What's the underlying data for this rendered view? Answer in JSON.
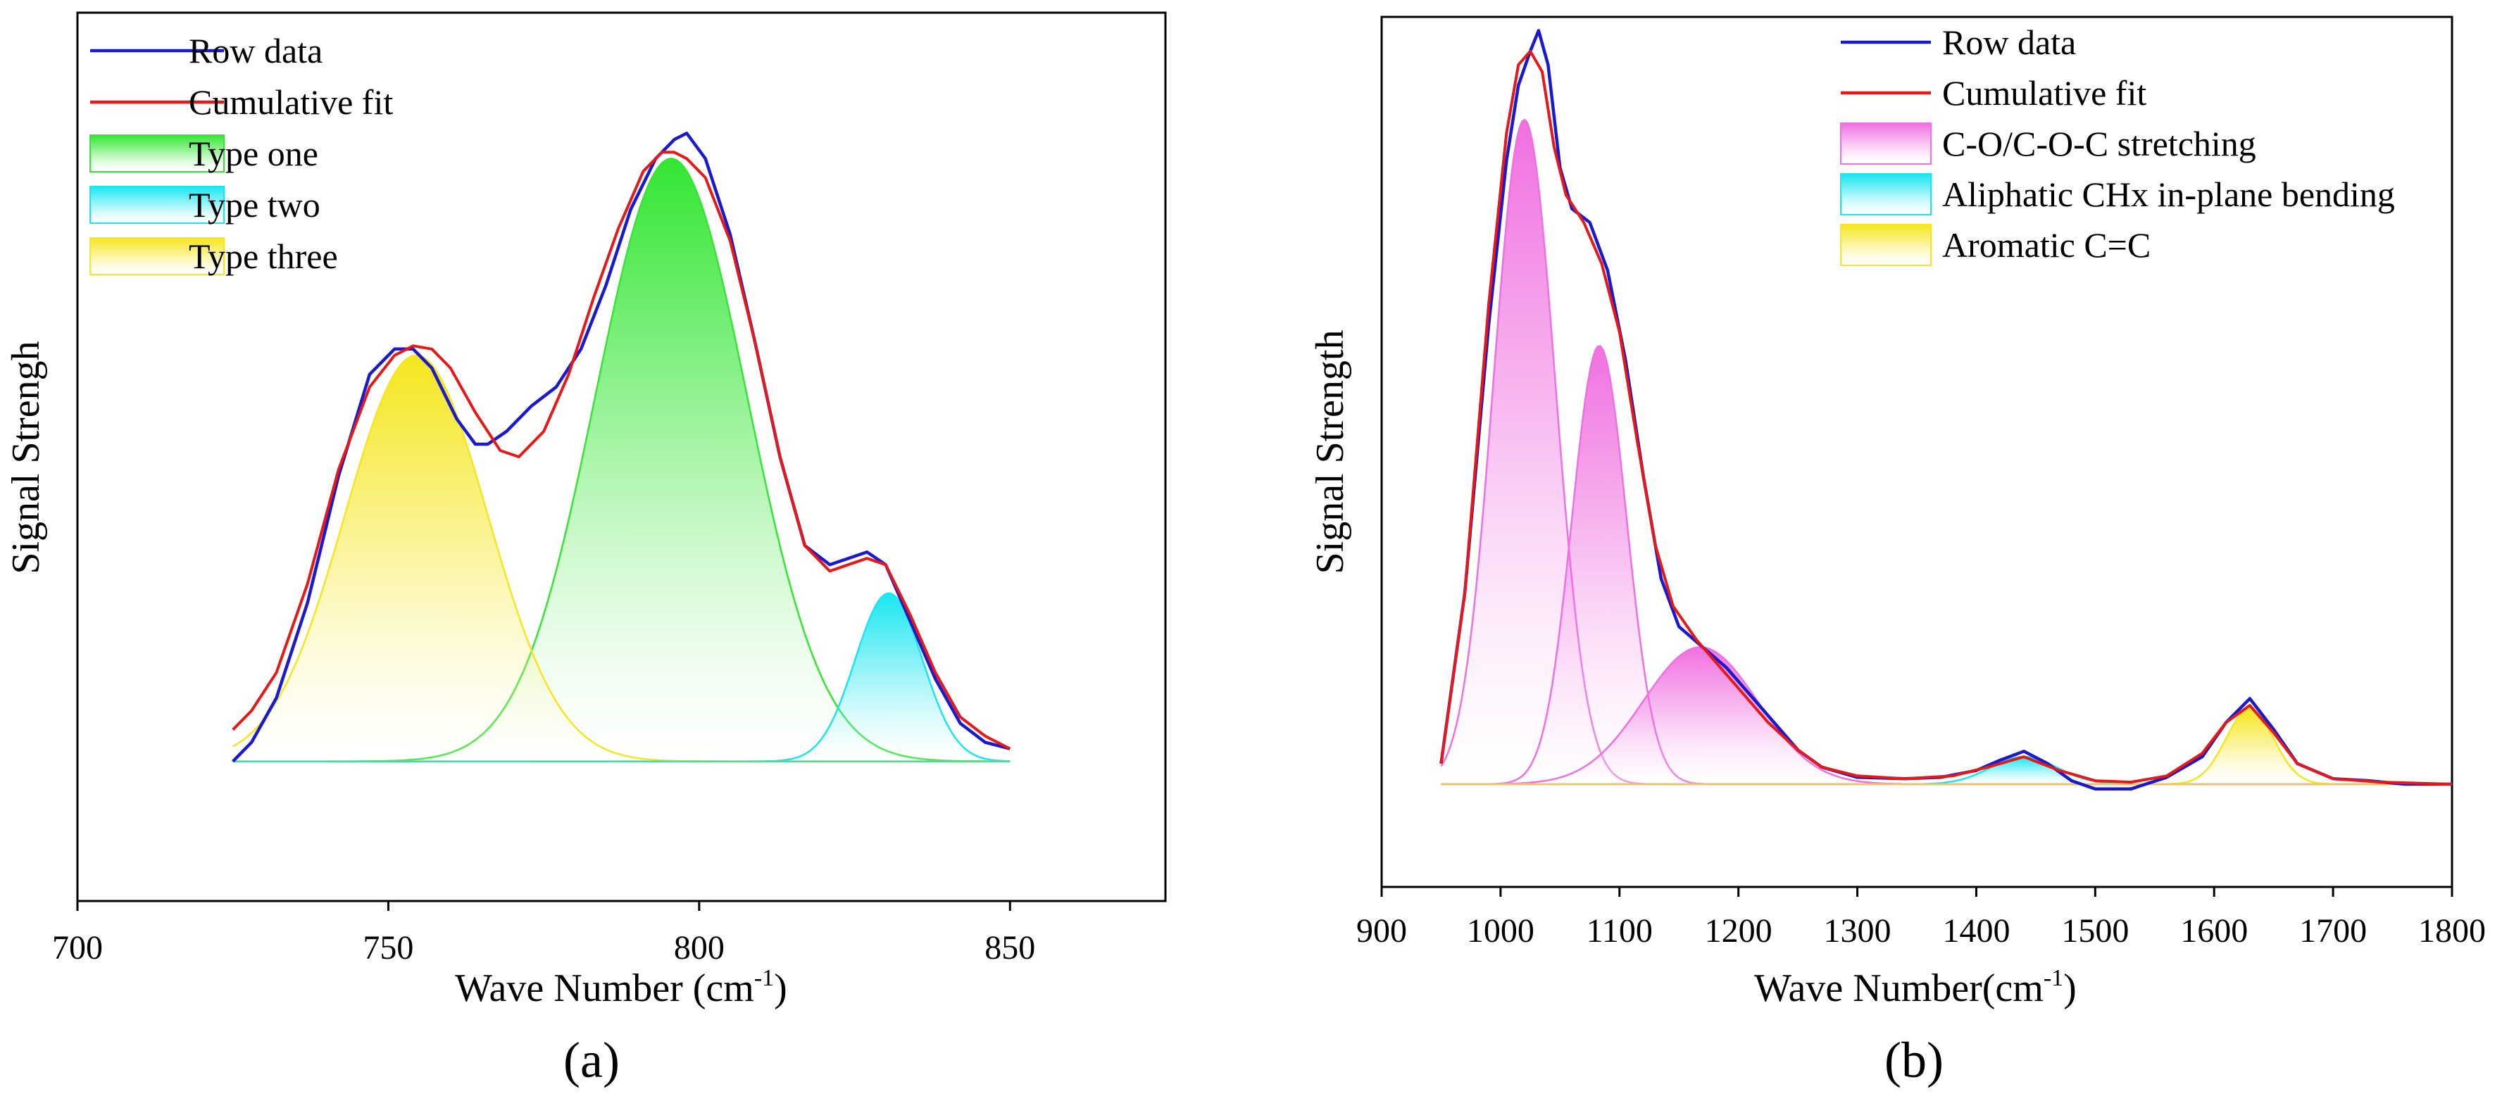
{
  "chart_data": [
    {
      "id": "a",
      "type": "line",
      "panel_label": "(a)",
      "xlabel": "Wave Number (cm",
      "xlabel_sup": "-1",
      "xlabel_end": ")",
      "ylabel": "Signal Strengh",
      "xlim": [
        700,
        875
      ],
      "ylim": [
        -0.22,
        1.18
      ],
      "xticks": [
        700,
        750,
        800,
        850
      ],
      "x_range": [
        725,
        850
      ],
      "raw_points": [
        [
          725,
          0.0
        ],
        [
          728,
          0.03
        ],
        [
          732,
          0.1
        ],
        [
          737,
          0.25
        ],
        [
          742,
          0.45
        ],
        [
          747,
          0.61
        ],
        [
          751,
          0.65
        ],
        [
          754,
          0.65
        ],
        [
          757,
          0.62
        ],
        [
          761,
          0.54
        ],
        [
          764,
          0.5
        ],
        [
          766,
          0.5
        ],
        [
          769,
          0.52
        ],
        [
          773,
          0.56
        ],
        [
          777,
          0.59
        ],
        [
          781,
          0.65
        ],
        [
          785,
          0.75
        ],
        [
          789,
          0.87
        ],
        [
          793,
          0.95
        ],
        [
          796,
          0.98
        ],
        [
          798,
          0.99
        ],
        [
          801,
          0.95
        ],
        [
          805,
          0.83
        ],
        [
          809,
          0.66
        ],
        [
          813,
          0.48
        ],
        [
          817,
          0.34
        ],
        [
          821,
          0.31
        ],
        [
          824,
          0.32
        ],
        [
          827,
          0.33
        ],
        [
          830,
          0.31
        ],
        [
          834,
          0.22
        ],
        [
          838,
          0.13
        ],
        [
          842,
          0.06
        ],
        [
          846,
          0.03
        ],
        [
          850,
          0.02
        ]
      ],
      "fit_points": [
        [
          725,
          0.05
        ],
        [
          728,
          0.08
        ],
        [
          732,
          0.14
        ],
        [
          737,
          0.28
        ],
        [
          742,
          0.46
        ],
        [
          747,
          0.59
        ],
        [
          751,
          0.64
        ],
        [
          754,
          0.655
        ],
        [
          757,
          0.65
        ],
        [
          760,
          0.62
        ],
        [
          764,
          0.55
        ],
        [
          768,
          0.49
        ],
        [
          771,
          0.48
        ],
        [
          775,
          0.52
        ],
        [
          779,
          0.61
        ],
        [
          783,
          0.73
        ],
        [
          787,
          0.84
        ],
        [
          791,
          0.93
        ],
        [
          794,
          0.96
        ],
        [
          796,
          0.96
        ],
        [
          798,
          0.95
        ],
        [
          801,
          0.92
        ],
        [
          805,
          0.82
        ],
        [
          809,
          0.66
        ],
        [
          813,
          0.48
        ],
        [
          817,
          0.34
        ],
        [
          821,
          0.3
        ],
        [
          824,
          0.31
        ],
        [
          827,
          0.32
        ],
        [
          830,
          0.31
        ],
        [
          834,
          0.23
        ],
        [
          838,
          0.14
        ],
        [
          842,
          0.07
        ],
        [
          846,
          0.04
        ],
        [
          850,
          0.02
        ]
      ],
      "components": [
        {
          "name": "Type one",
          "center": 795.5,
          "sigma": 12.2,
          "amplitude": 0.95,
          "color": "#33e633"
        },
        {
          "name": "Type two",
          "center": 830.5,
          "sigma": 5.4,
          "amplitude": 0.265,
          "color": "#19e6f0"
        },
        {
          "name": "Type three",
          "center": 754.5,
          "sigma": 11.5,
          "amplitude": 0.64,
          "color": "#f5e61e"
        }
      ],
      "legend": [
        {
          "label": "Row data",
          "kind": "line",
          "color": "#1a1acc"
        },
        {
          "label": "Cumulative fit",
          "kind": "line",
          "color": "#e61919"
        },
        {
          "label": "Type one",
          "kind": "area",
          "color": "#33e633"
        },
        {
          "label": "Type two",
          "kind": "area",
          "color": "#19e6f0"
        },
        {
          "label": "Type three",
          "kind": "area",
          "color": "#f5e61e"
        }
      ],
      "raw_color": "#1a1acc",
      "fit_color": "#e61919"
    },
    {
      "id": "b",
      "type": "line",
      "panel_label": "(b)",
      "xlabel": "Wave Number(cm",
      "xlabel_sup": "-1",
      "xlabel_end": ")",
      "ylabel": "Signal Strength",
      "xlim": [
        900,
        1800
      ],
      "ylim": [
        -0.15,
        1.12
      ],
      "xticks": [
        900,
        1000,
        1100,
        1200,
        1300,
        1400,
        1500,
        1600,
        1700,
        1800
      ],
      "x_range": [
        950,
        1800
      ],
      "raw_points": [
        [
          950,
          0.03
        ],
        [
          970,
          0.28
        ],
        [
          990,
          0.67
        ],
        [
          1005,
          0.91
        ],
        [
          1015,
          1.02
        ],
        [
          1025,
          1.07
        ],
        [
          1032,
          1.1
        ],
        [
          1040,
          1.05
        ],
        [
          1050,
          0.9
        ],
        [
          1060,
          0.84
        ],
        [
          1075,
          0.82
        ],
        [
          1090,
          0.75
        ],
        [
          1105,
          0.62
        ],
        [
          1120,
          0.45
        ],
        [
          1135,
          0.3
        ],
        [
          1150,
          0.23
        ],
        [
          1170,
          0.2
        ],
        [
          1190,
          0.17
        ],
        [
          1210,
          0.13
        ],
        [
          1230,
          0.09
        ],
        [
          1250,
          0.05
        ],
        [
          1270,
          0.025
        ],
        [
          1300,
          0.01
        ],
        [
          1340,
          0.008
        ],
        [
          1370,
          0.01
        ],
        [
          1400,
          0.02
        ],
        [
          1420,
          0.035
        ],
        [
          1440,
          0.048
        ],
        [
          1460,
          0.03
        ],
        [
          1480,
          0.005
        ],
        [
          1500,
          -0.007
        ],
        [
          1530,
          -0.007
        ],
        [
          1560,
          0.01
        ],
        [
          1590,
          0.04
        ],
        [
          1610,
          0.09
        ],
        [
          1630,
          0.125
        ],
        [
          1650,
          0.08
        ],
        [
          1670,
          0.03
        ],
        [
          1700,
          0.008
        ],
        [
          1730,
          0.005
        ],
        [
          1760,
          0.0
        ],
        [
          1800,
          0.0
        ]
      ],
      "fit_points": [
        [
          950,
          0.03
        ],
        [
          970,
          0.28
        ],
        [
          990,
          0.7
        ],
        [
          1005,
          0.95
        ],
        [
          1015,
          1.05
        ],
        [
          1025,
          1.07
        ],
        [
          1035,
          1.04
        ],
        [
          1045,
          0.93
        ],
        [
          1055,
          0.86
        ],
        [
          1070,
          0.82
        ],
        [
          1085,
          0.76
        ],
        [
          1100,
          0.66
        ],
        [
          1115,
          0.5
        ],
        [
          1130,
          0.35
        ],
        [
          1145,
          0.26
        ],
        [
          1165,
          0.21
        ],
        [
          1185,
          0.17
        ],
        [
          1205,
          0.13
        ],
        [
          1225,
          0.09
        ],
        [
          1250,
          0.05
        ],
        [
          1270,
          0.025
        ],
        [
          1300,
          0.012
        ],
        [
          1340,
          0.008
        ],
        [
          1380,
          0.012
        ],
        [
          1410,
          0.025
        ],
        [
          1440,
          0.04
        ],
        [
          1470,
          0.02
        ],
        [
          1500,
          0.005
        ],
        [
          1530,
          0.003
        ],
        [
          1560,
          0.012
        ],
        [
          1590,
          0.045
        ],
        [
          1610,
          0.09
        ],
        [
          1630,
          0.115
        ],
        [
          1650,
          0.075
        ],
        [
          1670,
          0.03
        ],
        [
          1700,
          0.008
        ],
        [
          1740,
          0.003
        ],
        [
          1800,
          0.0
        ]
      ],
      "components": [
        {
          "name": "C-O/C-O-C stretching",
          "center": 1020,
          "sigma": 26,
          "amplitude": 0.97,
          "color": "#f070e0"
        },
        {
          "name": "C-O/C-O-C stretching",
          "center": 1083,
          "sigma": 23,
          "amplitude": 0.64,
          "color": "#f070e0"
        },
        {
          "name": "C-O/C-O-C stretching",
          "center": 1168,
          "sigma": 48,
          "amplitude": 0.2,
          "color": "#f070e0"
        },
        {
          "name": "Aliphatic CHx in-plane bending",
          "center": 1440,
          "sigma": 28,
          "amplitude": 0.04,
          "color": "#19e6f0"
        },
        {
          "name": "Aromatic C=C",
          "center": 1630,
          "sigma": 20,
          "amplitude": 0.11,
          "color": "#f5e61e"
        }
      ],
      "legend": [
        {
          "label": "Row data",
          "kind": "line",
          "color": "#1a1acc"
        },
        {
          "label": "Cumulative fit",
          "kind": "line",
          "color": "#e61919"
        },
        {
          "label": "C-O/C-O-C stretching",
          "kind": "area",
          "color": "#f070e0"
        },
        {
          "label": "Aliphatic CHx in-plane bending",
          "kind": "area",
          "color": "#19e6f0"
        },
        {
          "label": "Aromatic C=C",
          "kind": "area",
          "color": "#f5e61e"
        }
      ],
      "raw_color": "#1a1acc",
      "fit_color": "#e61919"
    }
  ]
}
